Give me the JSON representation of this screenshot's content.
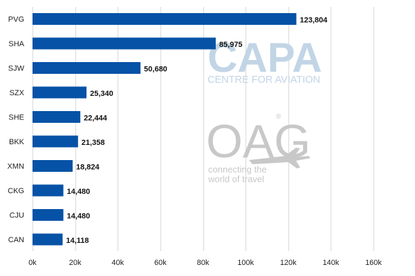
{
  "chart_data": {
    "type": "bar",
    "orientation": "horizontal",
    "categories": [
      "PVG",
      "SHA",
      "SJW",
      "SZX",
      "SHE",
      "BKK",
      "XMN",
      "CKG",
      "CJU",
      "CAN"
    ],
    "values": [
      123804,
      85975,
      50680,
      25340,
      22444,
      21358,
      18824,
      14480,
      14480,
      14118
    ],
    "data_labels": [
      "123,804",
      "85,975",
      "50,680",
      "25,340",
      "22,444",
      "21,358",
      "18,824",
      "14,480",
      "14,480",
      "14,118"
    ],
    "xticks": [
      0,
      20000,
      40000,
      60000,
      80000,
      100000,
      120000,
      140000,
      160000
    ],
    "xtick_labels": [
      "0k",
      "20k",
      "40k",
      "60k",
      "80k",
      "100k",
      "120k",
      "140k",
      "160k"
    ],
    "xlim": [
      0,
      160000
    ],
    "title": "",
    "xlabel": "",
    "ylabel": "",
    "grid": "vertical",
    "legend": "none",
    "bar_color": "#0652a6",
    "grid_color": "#d9d9d9"
  },
  "watermarks": {
    "capa_logo": "CAPA",
    "capa_subtitle": "CENTRE FOR AVIATION",
    "capa_color": "#c2d5e6",
    "oag_logo": "OAG",
    "oag_registered": "®",
    "oag_tagline_1": "connecting the",
    "oag_tagline_2": "world of travel",
    "oag_color": "#c8c8c8"
  }
}
